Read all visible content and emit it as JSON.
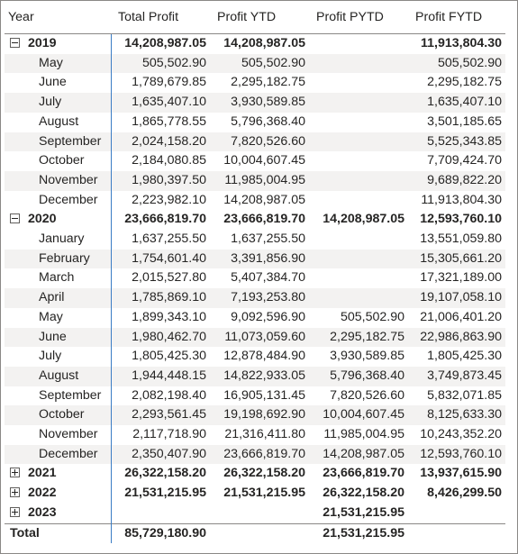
{
  "columns": [
    "Year",
    "Total Profit",
    "Profit YTD",
    "Profit PYTD",
    "Profit FYTD"
  ],
  "rows": [
    {
      "kind": "year",
      "toggle": "minus",
      "icon": "collapse-icon",
      "label": "2019",
      "v": [
        "14,208,987.05",
        "14,208,987.05",
        "",
        "11,913,804.30"
      ]
    },
    {
      "kind": "month",
      "label": "May",
      "v": [
        "505,502.90",
        "505,502.90",
        "",
        "505,502.90"
      ]
    },
    {
      "kind": "month",
      "label": "June",
      "v": [
        "1,789,679.85",
        "2,295,182.75",
        "",
        "2,295,182.75"
      ]
    },
    {
      "kind": "month",
      "label": "July",
      "v": [
        "1,635,407.10",
        "3,930,589.85",
        "",
        "1,635,407.10"
      ]
    },
    {
      "kind": "month",
      "label": "August",
      "v": [
        "1,865,778.55",
        "5,796,368.40",
        "",
        "3,501,185.65"
      ]
    },
    {
      "kind": "month",
      "label": "September",
      "v": [
        "2,024,158.20",
        "7,820,526.60",
        "",
        "5,525,343.85"
      ]
    },
    {
      "kind": "month",
      "label": "October",
      "v": [
        "2,184,080.85",
        "10,004,607.45",
        "",
        "7,709,424.70"
      ]
    },
    {
      "kind": "month",
      "label": "November",
      "v": [
        "1,980,397.50",
        "11,985,004.95",
        "",
        "9,689,822.20"
      ]
    },
    {
      "kind": "month",
      "label": "December",
      "v": [
        "2,223,982.10",
        "14,208,987.05",
        "",
        "11,913,804.30"
      ]
    },
    {
      "kind": "year",
      "toggle": "minus",
      "icon": "collapse-icon",
      "label": "2020",
      "v": [
        "23,666,819.70",
        "23,666,819.70",
        "14,208,987.05",
        "12,593,760.10"
      ]
    },
    {
      "kind": "month",
      "label": "January",
      "v": [
        "1,637,255.50",
        "1,637,255.50",
        "",
        "13,551,059.80"
      ]
    },
    {
      "kind": "month",
      "label": "February",
      "v": [
        "1,754,601.40",
        "3,391,856.90",
        "",
        "15,305,661.20"
      ]
    },
    {
      "kind": "month",
      "label": "March",
      "v": [
        "2,015,527.80",
        "5,407,384.70",
        "",
        "17,321,189.00"
      ]
    },
    {
      "kind": "month",
      "label": "April",
      "v": [
        "1,785,869.10",
        "7,193,253.80",
        "",
        "19,107,058.10"
      ]
    },
    {
      "kind": "month",
      "label": "May",
      "v": [
        "1,899,343.10",
        "9,092,596.90",
        "505,502.90",
        "21,006,401.20"
      ]
    },
    {
      "kind": "month",
      "label": "June",
      "v": [
        "1,980,462.70",
        "11,073,059.60",
        "2,295,182.75",
        "22,986,863.90"
      ]
    },
    {
      "kind": "month",
      "label": "July",
      "v": [
        "1,805,425.30",
        "12,878,484.90",
        "3,930,589.85",
        "1,805,425.30"
      ]
    },
    {
      "kind": "month",
      "label": "August",
      "v": [
        "1,944,448.15",
        "14,822,933.05",
        "5,796,368.40",
        "3,749,873.45"
      ]
    },
    {
      "kind": "month",
      "label": "September",
      "v": [
        "2,082,198.40",
        "16,905,131.45",
        "7,820,526.60",
        "5,832,071.85"
      ]
    },
    {
      "kind": "month",
      "label": "October",
      "v": [
        "2,293,561.45",
        "19,198,692.90",
        "10,004,607.45",
        "8,125,633.30"
      ]
    },
    {
      "kind": "month",
      "label": "November",
      "v": [
        "2,117,718.90",
        "21,316,411.80",
        "11,985,004.95",
        "10,243,352.20"
      ]
    },
    {
      "kind": "month",
      "label": "December",
      "v": [
        "2,350,407.90",
        "23,666,819.70",
        "14,208,987.05",
        "12,593,760.10"
      ]
    },
    {
      "kind": "year",
      "toggle": "plus",
      "icon": "expand-icon",
      "label": "2021",
      "v": [
        "26,322,158.20",
        "26,322,158.20",
        "23,666,819.70",
        "13,937,615.90"
      ]
    },
    {
      "kind": "year",
      "toggle": "plus",
      "icon": "expand-icon",
      "label": "2022",
      "v": [
        "21,531,215.95",
        "21,531,215.95",
        "26,322,158.20",
        "8,426,299.50"
      ]
    },
    {
      "kind": "year",
      "toggle": "plus",
      "icon": "expand-icon",
      "label": "2023",
      "v": [
        "",
        "",
        "21,531,215.95",
        ""
      ]
    },
    {
      "kind": "total",
      "label": "Total",
      "v": [
        "85,729,180.90",
        "",
        "21,531,215.95",
        ""
      ]
    }
  ]
}
